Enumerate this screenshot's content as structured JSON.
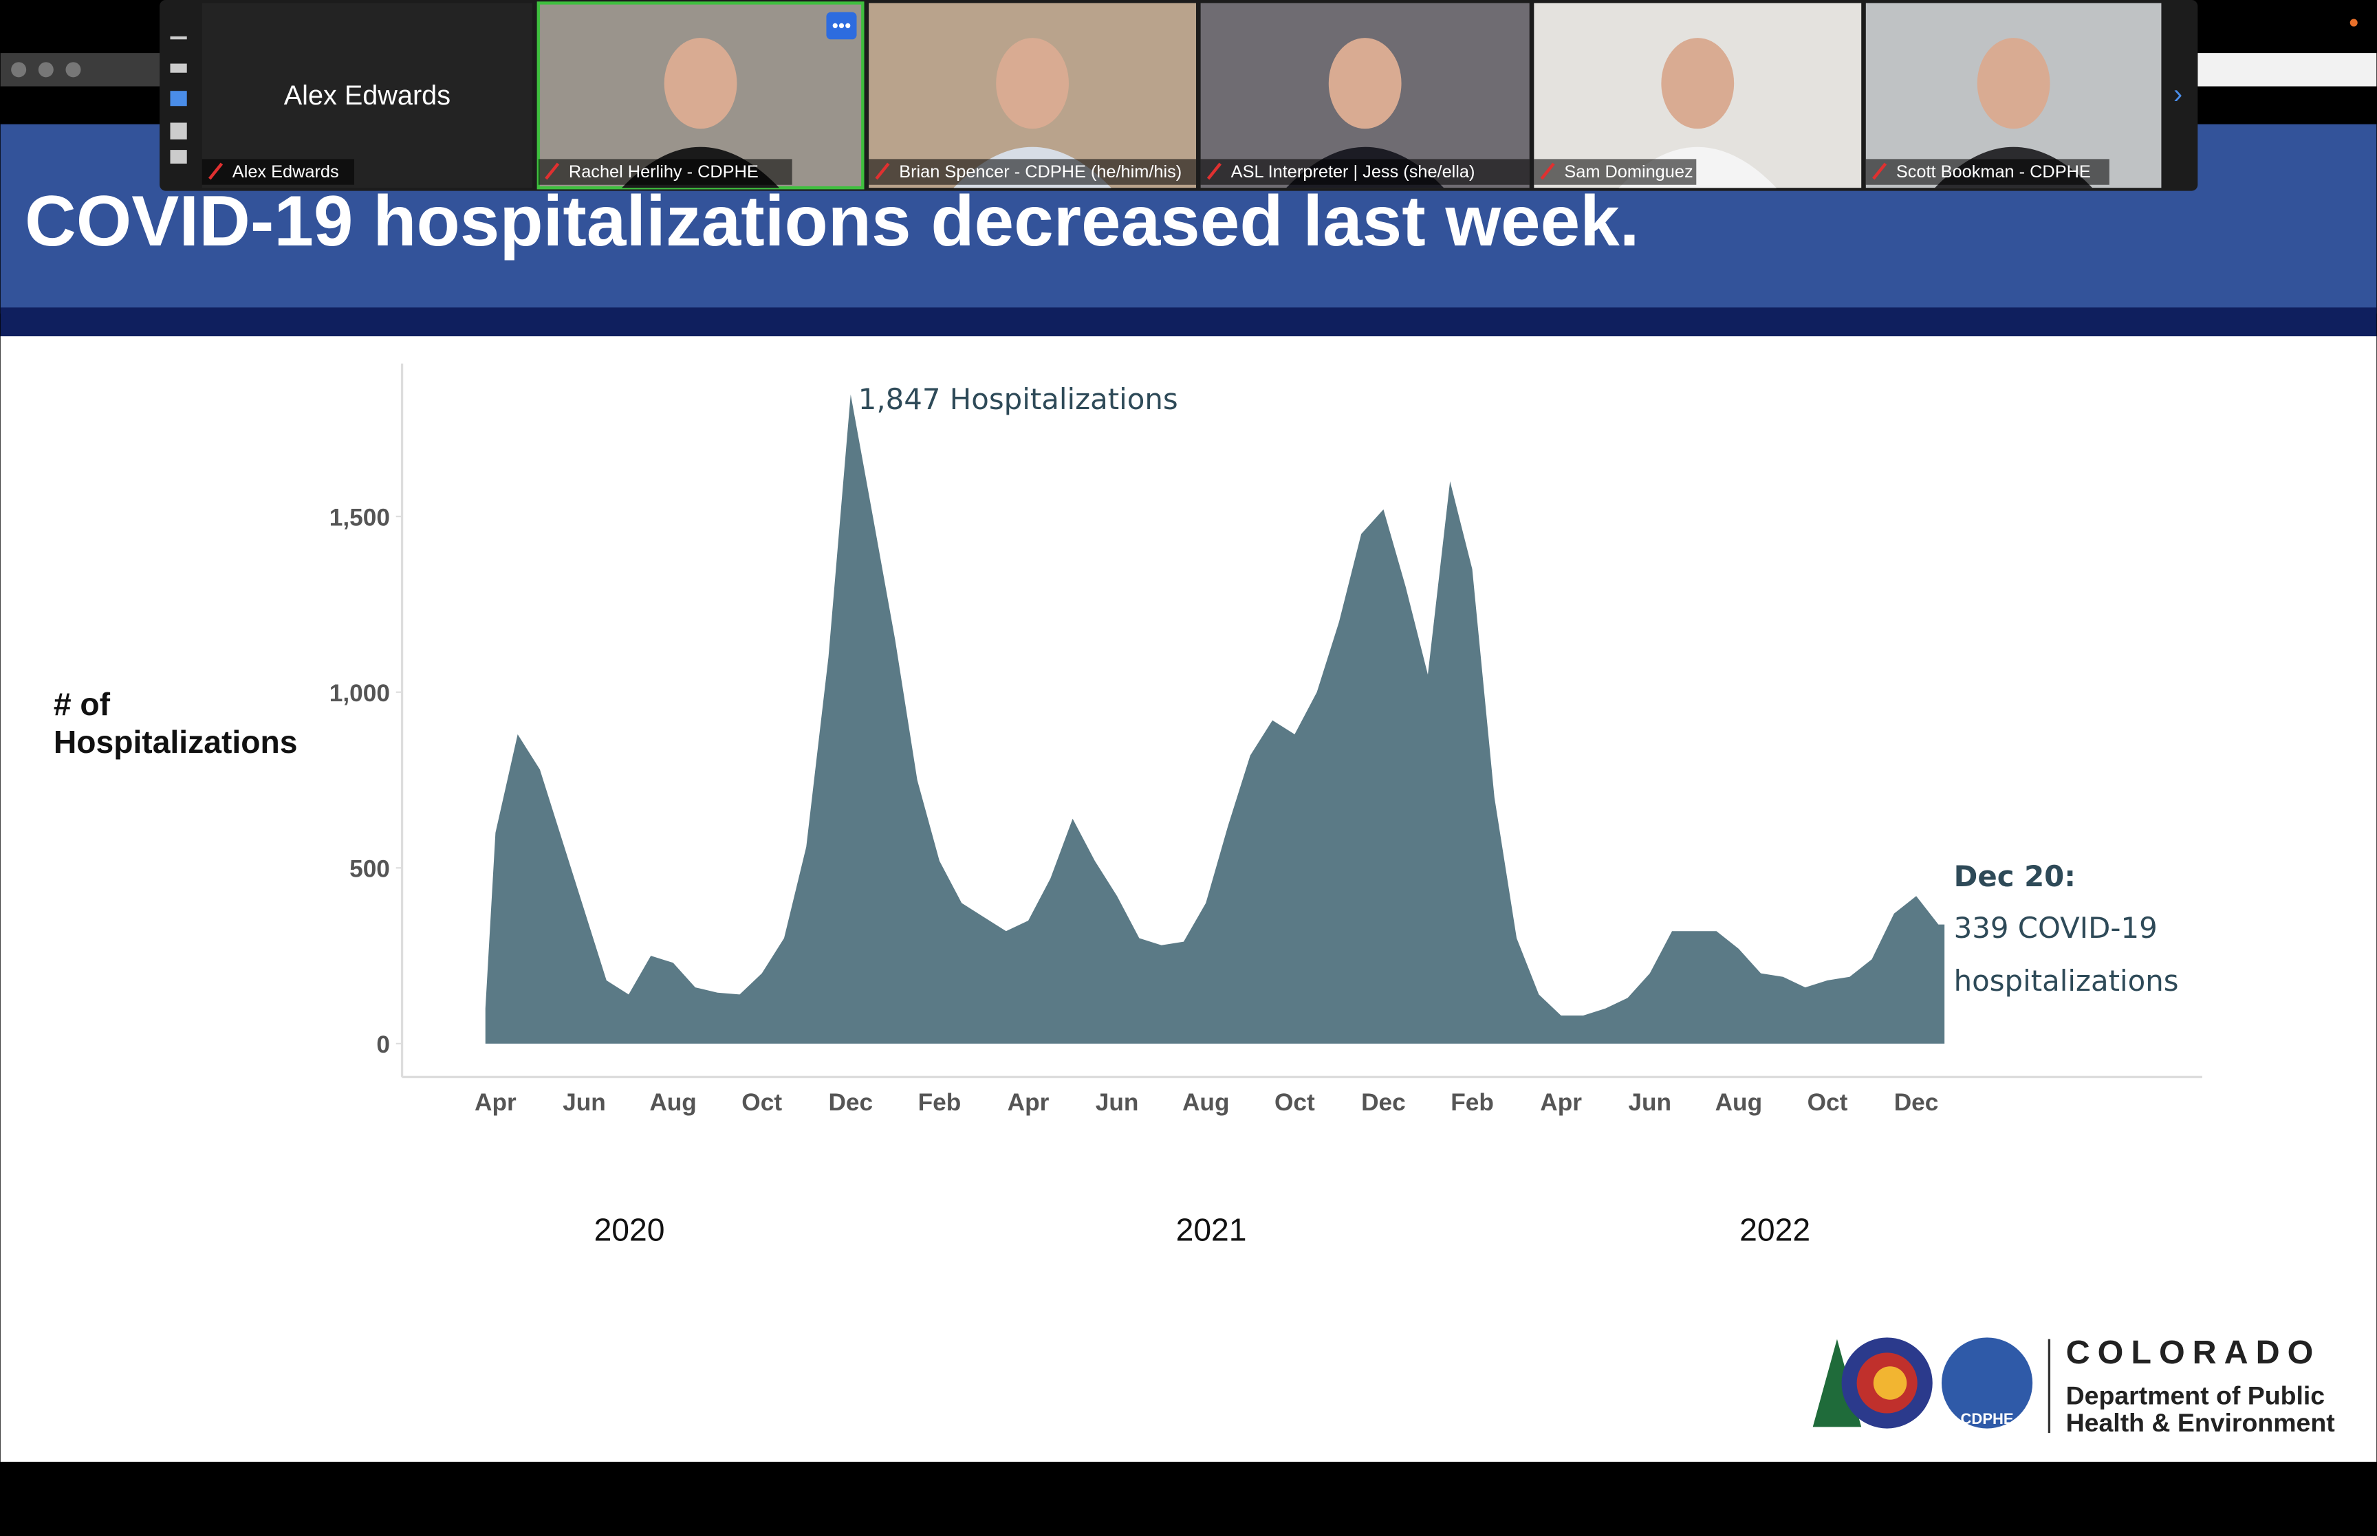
{
  "participants": [
    {
      "name": "Alex Edwards"
    },
    {
      "name": "Rachel Herlihy - CDPHE"
    },
    {
      "name": "Brian Spencer - CDPHE (he/him/his)"
    },
    {
      "name": "ASL Interpreter | Jess (she/ella)"
    },
    {
      "name": "Sam Dominguez"
    },
    {
      "name": "Scott Bookman - CDPHE"
    }
  ],
  "slide": {
    "title": "COVID-19 hospitalizations decreased last week.",
    "logo": {
      "wordmark": "COLORADO",
      "line1": "Department of Public",
      "line2": "Health & Environment",
      "badge": "CDPHE"
    }
  },
  "chart_data": {
    "type": "area",
    "y_label": [
      "# of",
      "Hospitalizations"
    ],
    "color": "#5b7a86",
    "categories": [
      null,
      "Apr",
      null,
      null,
      null,
      "Jun",
      null,
      null,
      null,
      "Aug",
      null,
      null,
      null,
      "Oct",
      null,
      null,
      null,
      "Dec",
      null,
      null,
      null,
      "Feb",
      null,
      null,
      null,
      "Apr",
      null,
      null,
      null,
      "Jun",
      null,
      null,
      null,
      "Aug",
      null,
      null,
      null,
      "Oct",
      null,
      null,
      null,
      "Dec",
      null,
      null,
      null,
      "Feb",
      null,
      null,
      null,
      "Apr",
      null,
      null,
      null,
      "Jun",
      null,
      null,
      null,
      "Aug",
      null,
      null,
      null,
      "Oct",
      null,
      null,
      null,
      "Dec",
      null
    ],
    "values": [
      100,
      600,
      880,
      780,
      580,
      380,
      180,
      140,
      250,
      230,
      160,
      145,
      140,
      200,
      300,
      560,
      1100,
      1847,
      1500,
      1150,
      750,
      520,
      400,
      360,
      320,
      350,
      470,
      640,
      520,
      420,
      300,
      280,
      290,
      400,
      620,
      820,
      920,
      880,
      1000,
      1200,
      1450,
      1520,
      1300,
      1050,
      1600,
      1350,
      700,
      300,
      140,
      80,
      80,
      100,
      130,
      200,
      320,
      320,
      320,
      270,
      200,
      190,
      160,
      180,
      190,
      240,
      370,
      420,
      339
    ],
    "year_labels": [
      "2020",
      "2021",
      "2022"
    ],
    "ylim": [
      -95,
      1935
    ],
    "yticks": [
      0,
      500,
      {
        "value": 1000,
        "label": "1,000"
      },
      {
        "value": 1500,
        "label": "1,500"
      }
    ],
    "peak_annotation": "1,847 Hospitalizations",
    "end_annotation": [
      "Dec 20:",
      "339 COVID-19",
      "hospitalizations"
    ]
  }
}
